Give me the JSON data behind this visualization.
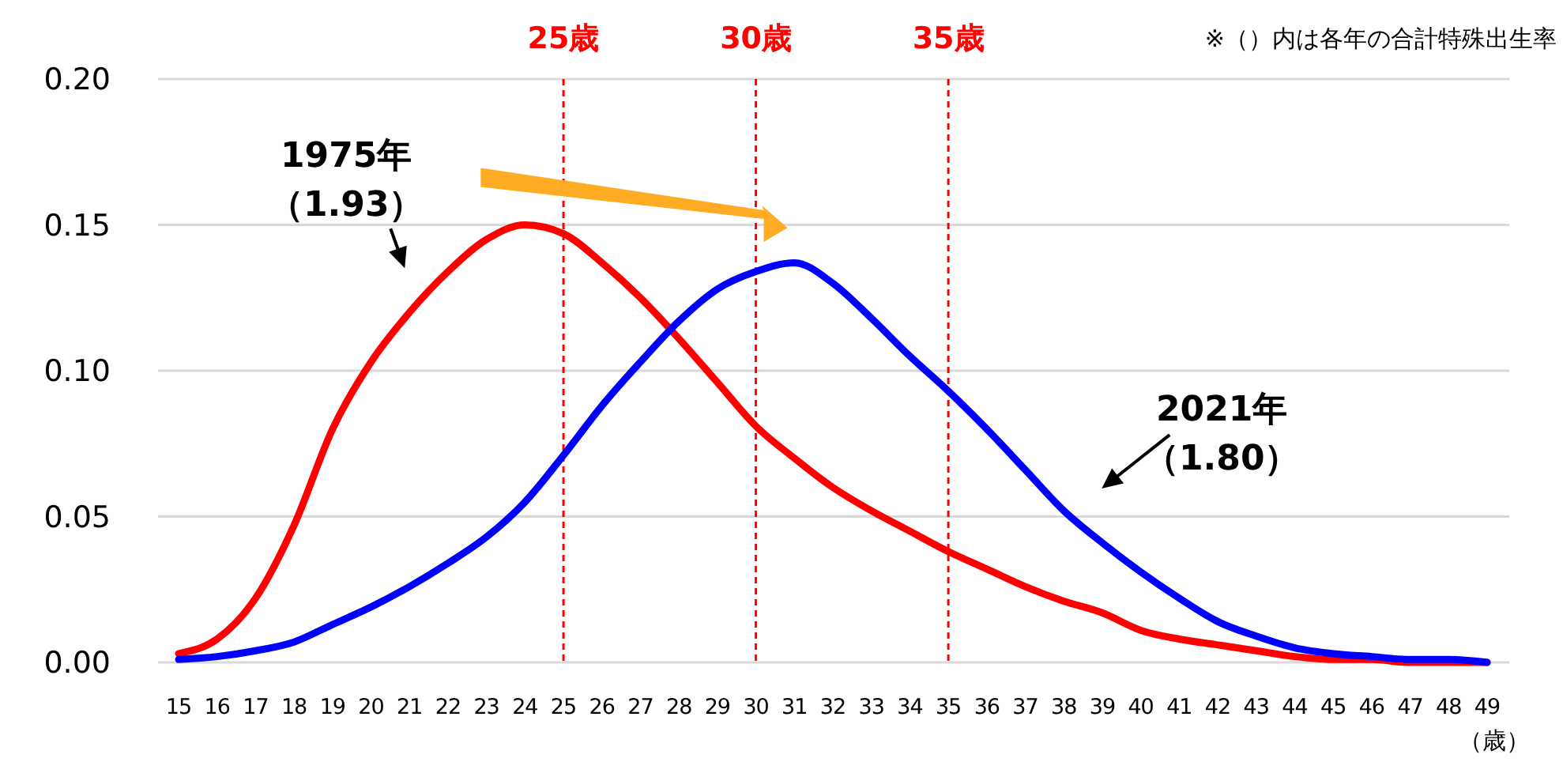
{
  "chart_data": {
    "type": "line",
    "xlabel": "（歳）",
    "categories": [
      "15",
      "16",
      "17",
      "18",
      "19",
      "20",
      "21",
      "22",
      "23",
      "24",
      "25",
      "26",
      "27",
      "28",
      "29",
      "30",
      "31",
      "32",
      "33",
      "34",
      "35",
      "36",
      "37",
      "38",
      "39",
      "40",
      "41",
      "42",
      "43",
      "44",
      "45",
      "46",
      "47",
      "48",
      "49"
    ],
    "series": [
      {
        "color": "#ff0000",
        "values": [
          0.003,
          0.008,
          0.022,
          0.047,
          0.08,
          0.103,
          0.12,
          0.134,
          0.145,
          0.15,
          0.147,
          0.137,
          0.125,
          0.111,
          0.096,
          0.081,
          0.07,
          0.06,
          0.052,
          0.045,
          0.038,
          0.032,
          0.026,
          0.021,
          0.017,
          0.011,
          0.008,
          0.006,
          0.004,
          0.002,
          0.001,
          0.001,
          0.0,
          0.0,
          0.0
        ]
      },
      {
        "color": "#0000ff",
        "values": [
          0.001,
          0.002,
          0.004,
          0.007,
          0.013,
          0.019,
          0.026,
          0.034,
          0.043,
          0.055,
          0.071,
          0.088,
          0.103,
          0.117,
          0.128,
          0.134,
          0.137,
          0.13,
          0.118,
          0.105,
          0.093,
          0.08,
          0.066,
          0.052,
          0.041,
          0.031,
          0.022,
          0.014,
          0.009,
          0.005,
          0.003,
          0.002,
          0.001,
          0.001,
          0.0
        ]
      }
    ],
    "ylim": [
      0,
      0.2
    ],
    "yticks": [
      {
        "value": 0,
        "label": "0.00"
      },
      {
        "value": 0.05,
        "label": "0.05"
      },
      {
        "value": 0.1,
        "label": "0.10"
      },
      {
        "value": 0.15,
        "label": "0.15"
      },
      {
        "value": 0.2,
        "label": "0.20"
      }
    ],
    "grid": "y",
    "marker": "none",
    "line_style": "solid",
    "ref_lines": [
      {
        "axis": "x",
        "value": "25",
        "label": "25歳",
        "color": "#ff0000",
        "line_style": "dashed"
      },
      {
        "axis": "x",
        "value": "30",
        "label": "30歳",
        "color": "#ff0000",
        "line_style": "dashed"
      },
      {
        "axis": "x",
        "value": "35",
        "label": "35歳",
        "color": "#ff0000",
        "line_style": "dashed"
      }
    ],
    "annotations": [
      "※（）内は各年の合計特殊出生率",
      "1975年",
      {
        "text": "（1.93）",
        "x": "21",
        "y": 0.12
      },
      "2021年",
      {
        "text": "（1.80）",
        "x": "38",
        "y": 0.052
      }
    ]
  }
}
